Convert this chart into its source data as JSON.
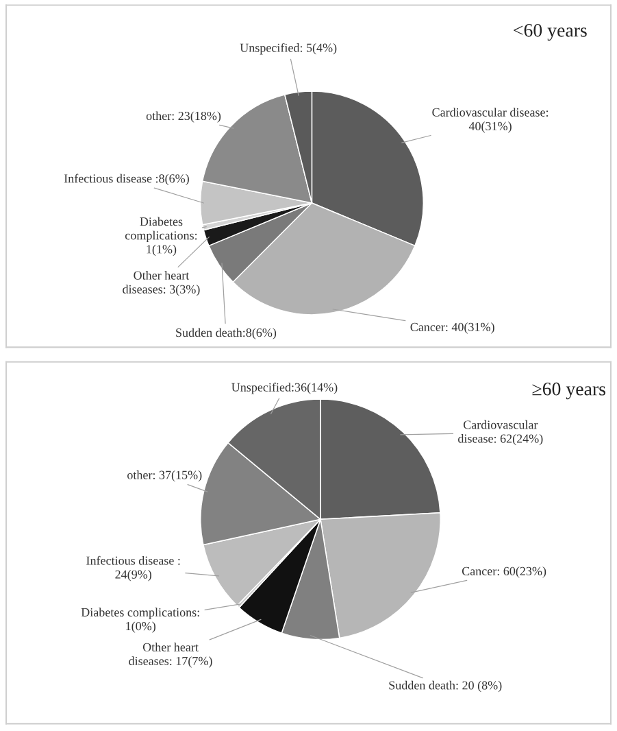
{
  "chart_data": [
    {
      "type": "pie",
      "title": "<60 years",
      "categories": [
        "Cardiovascular disease",
        "Cancer",
        "Sudden death",
        "Other heart diseases",
        "Diabetes complications",
        "Infectious disease",
        "other",
        "Unspecified"
      ],
      "values": [
        40,
        40,
        8,
        3,
        1,
        8,
        23,
        5
      ],
      "value_labels": [
        ":\n40(31%)",
        ": 40(31%)",
        ":8(6%)",
        ": 3(3%)",
        ":\n1(1%)",
        " :8(6%)",
        ": 23(18%)",
        ": 5(4%)"
      ],
      "colors": [
        "#5c5c5c",
        "#b2b2b2",
        "#7a7a7a",
        "#1a1a1a",
        "#d4d4d4",
        "#c4c4c4",
        "#8a8a8a",
        "#5a5a5a"
      ]
    },
    {
      "type": "pie",
      "title": "≥60 years",
      "categories": [
        "Cardiovascular disease",
        "Cancer",
        "Sudden death",
        "Other heart diseases",
        "Diabetes complications",
        "Infectious disease",
        "other",
        "Unspecified"
      ],
      "values": [
        62,
        60,
        20,
        17,
        1,
        24,
        37,
        36
      ],
      "value_labels": [
        ": 62(24%)",
        ": 60(23%)",
        ": 20 (8%)",
        ": 17(7%)",
        ":\n1(0%)",
        " :\n24(9%)",
        ": 37(15%)",
        ":36(14%)"
      ],
      "colors": [
        "#5e5e5e",
        "#b6b6b6",
        "#808080",
        "#111111",
        "#cccccc",
        "#bcbcbc",
        "#828282",
        "#666666"
      ]
    }
  ]
}
